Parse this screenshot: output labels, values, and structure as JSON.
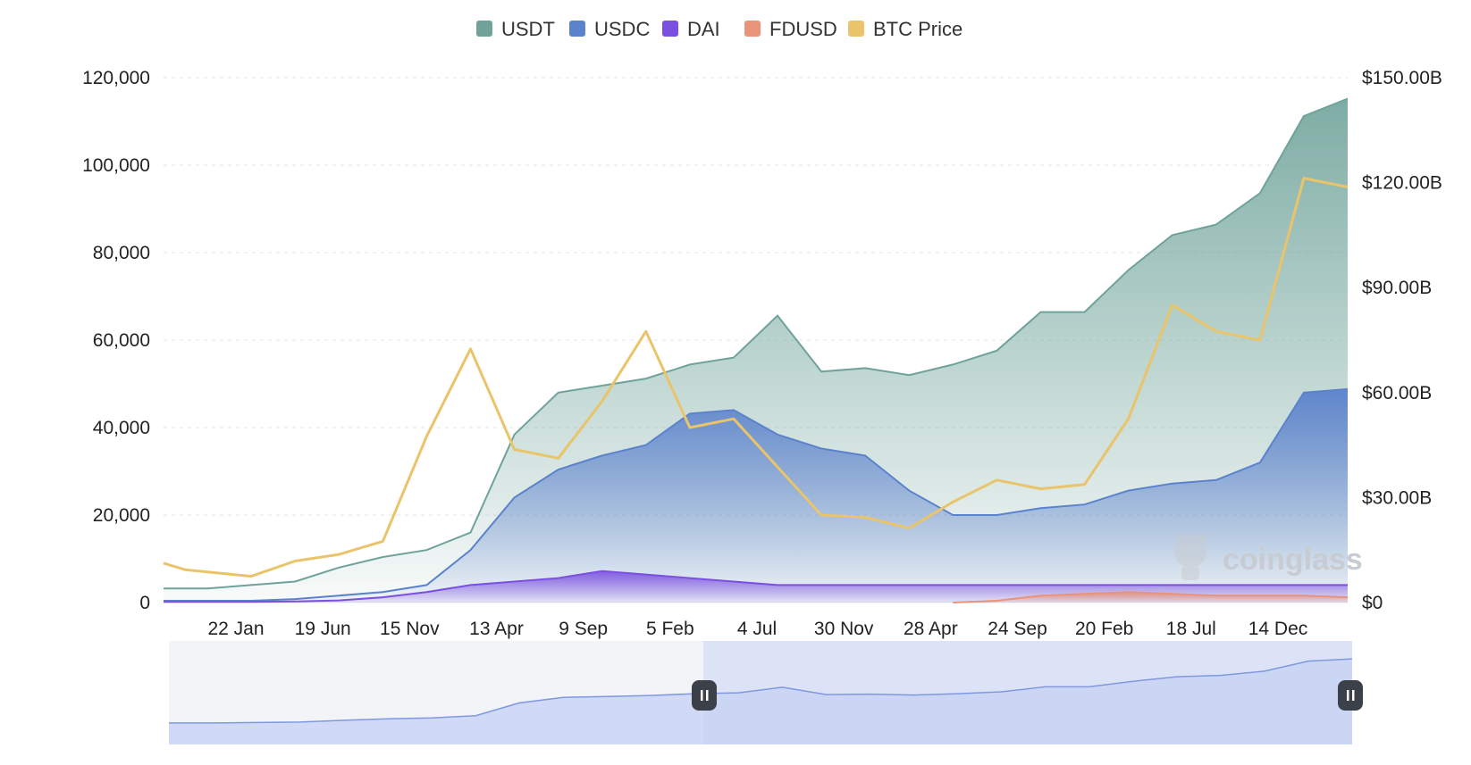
{
  "chart_data": {
    "type": "area",
    "title": "",
    "legend": {
      "placement": "top-center",
      "items": [
        {
          "name": "USDT",
          "color": "#6fa39a"
        },
        {
          "name": "USDC",
          "color": "#5b82cc"
        },
        {
          "name": "DAI",
          "color": "#7b4fe0"
        },
        {
          "name": "FDUSD",
          "color": "#e8937a"
        },
        {
          "name": "BTC Price",
          "color": "#e9c46a"
        }
      ]
    },
    "x_tick_labels": [
      "22 Jan",
      "19 Jun",
      "15 Nov",
      "13 Apr",
      "9 Sep",
      "5 Feb",
      "4 Jul",
      "30 Nov",
      "28 Apr",
      "24 Sep",
      "20 Feb",
      "18 Jul",
      "14 Dec"
    ],
    "y_left": {
      "ticks": [
        "0",
        "20,000",
        "40,000",
        "60,000",
        "80,000",
        "100,000",
        "120,000"
      ],
      "range": [
        0,
        120000
      ]
    },
    "y_right": {
      "ticks": [
        "$0",
        "$30.00B",
        "$60.00B",
        "$90.00B",
        "$120.00B",
        "$150.00B"
      ],
      "range": [
        0,
        150
      ]
    },
    "grid": true,
    "x": [
      0,
      0.25,
      0.5,
      1,
      1.5,
      2,
      2.5,
      3,
      3.5,
      4,
      4.5,
      5,
      5.5,
      6,
      6.5,
      7,
      7.5,
      8,
      8.5,
      9,
      9.5,
      10,
      10.5,
      11,
      11.5,
      12,
      12.5,
      13,
      13.5
    ],
    "series": [
      {
        "name": "USDT",
        "axis": "right",
        "color": "#6fa39a",
        "values": [
          4,
          4,
          4,
          5,
          6,
          10,
          13,
          15,
          20,
          48,
          60,
          62,
          64,
          68,
          70,
          82,
          66,
          67,
          65,
          68,
          72,
          83,
          83,
          95,
          105,
          108,
          117,
          139,
          144
        ]
      },
      {
        "name": "USDC",
        "axis": "right",
        "color": "#5b82cc",
        "values": [
          0.5,
          0.5,
          0.5,
          0.5,
          1,
          2,
          3,
          5,
          15,
          30,
          38,
          42,
          45,
          54,
          55,
          48,
          44,
          42,
          32,
          25,
          25,
          27,
          28,
          32,
          34,
          35,
          40,
          60,
          61
        ]
      },
      {
        "name": "DAI",
        "axis": "right",
        "color": "#7b4fe0",
        "values": [
          0.2,
          0.2,
          0.2,
          0.2,
          0.3,
          0.6,
          1.5,
          3,
          5,
          6,
          7,
          9,
          8,
          7,
          6,
          5,
          5,
          5,
          5,
          5,
          5,
          5,
          5,
          5,
          5,
          5,
          5,
          5,
          5
        ]
      },
      {
        "name": "FDUSD",
        "axis": "right",
        "color": "#e8937a",
        "values": [
          0,
          0,
          0,
          0,
          0,
          0,
          0,
          0,
          0,
          0,
          0,
          0,
          0,
          0,
          0,
          0,
          0,
          0,
          0,
          0,
          0.5,
          2,
          2.5,
          3,
          2.5,
          2,
          2,
          2,
          1.5
        ]
      },
      {
        "name": "BTC Price",
        "axis": "left",
        "color": "#e9c46a",
        "values": [
          9000,
          7500,
          7000,
          6000,
          9500,
          11000,
          14000,
          38000,
          58000,
          35000,
          33000,
          46000,
          62000,
          40000,
          42000,
          31000,
          20000,
          19500,
          17000,
          23000,
          28000,
          26000,
          27000,
          42000,
          68000,
          62000,
          60000,
          97000,
          95000
        ]
      }
    ]
  },
  "watermark": {
    "text": "coinglass"
  }
}
